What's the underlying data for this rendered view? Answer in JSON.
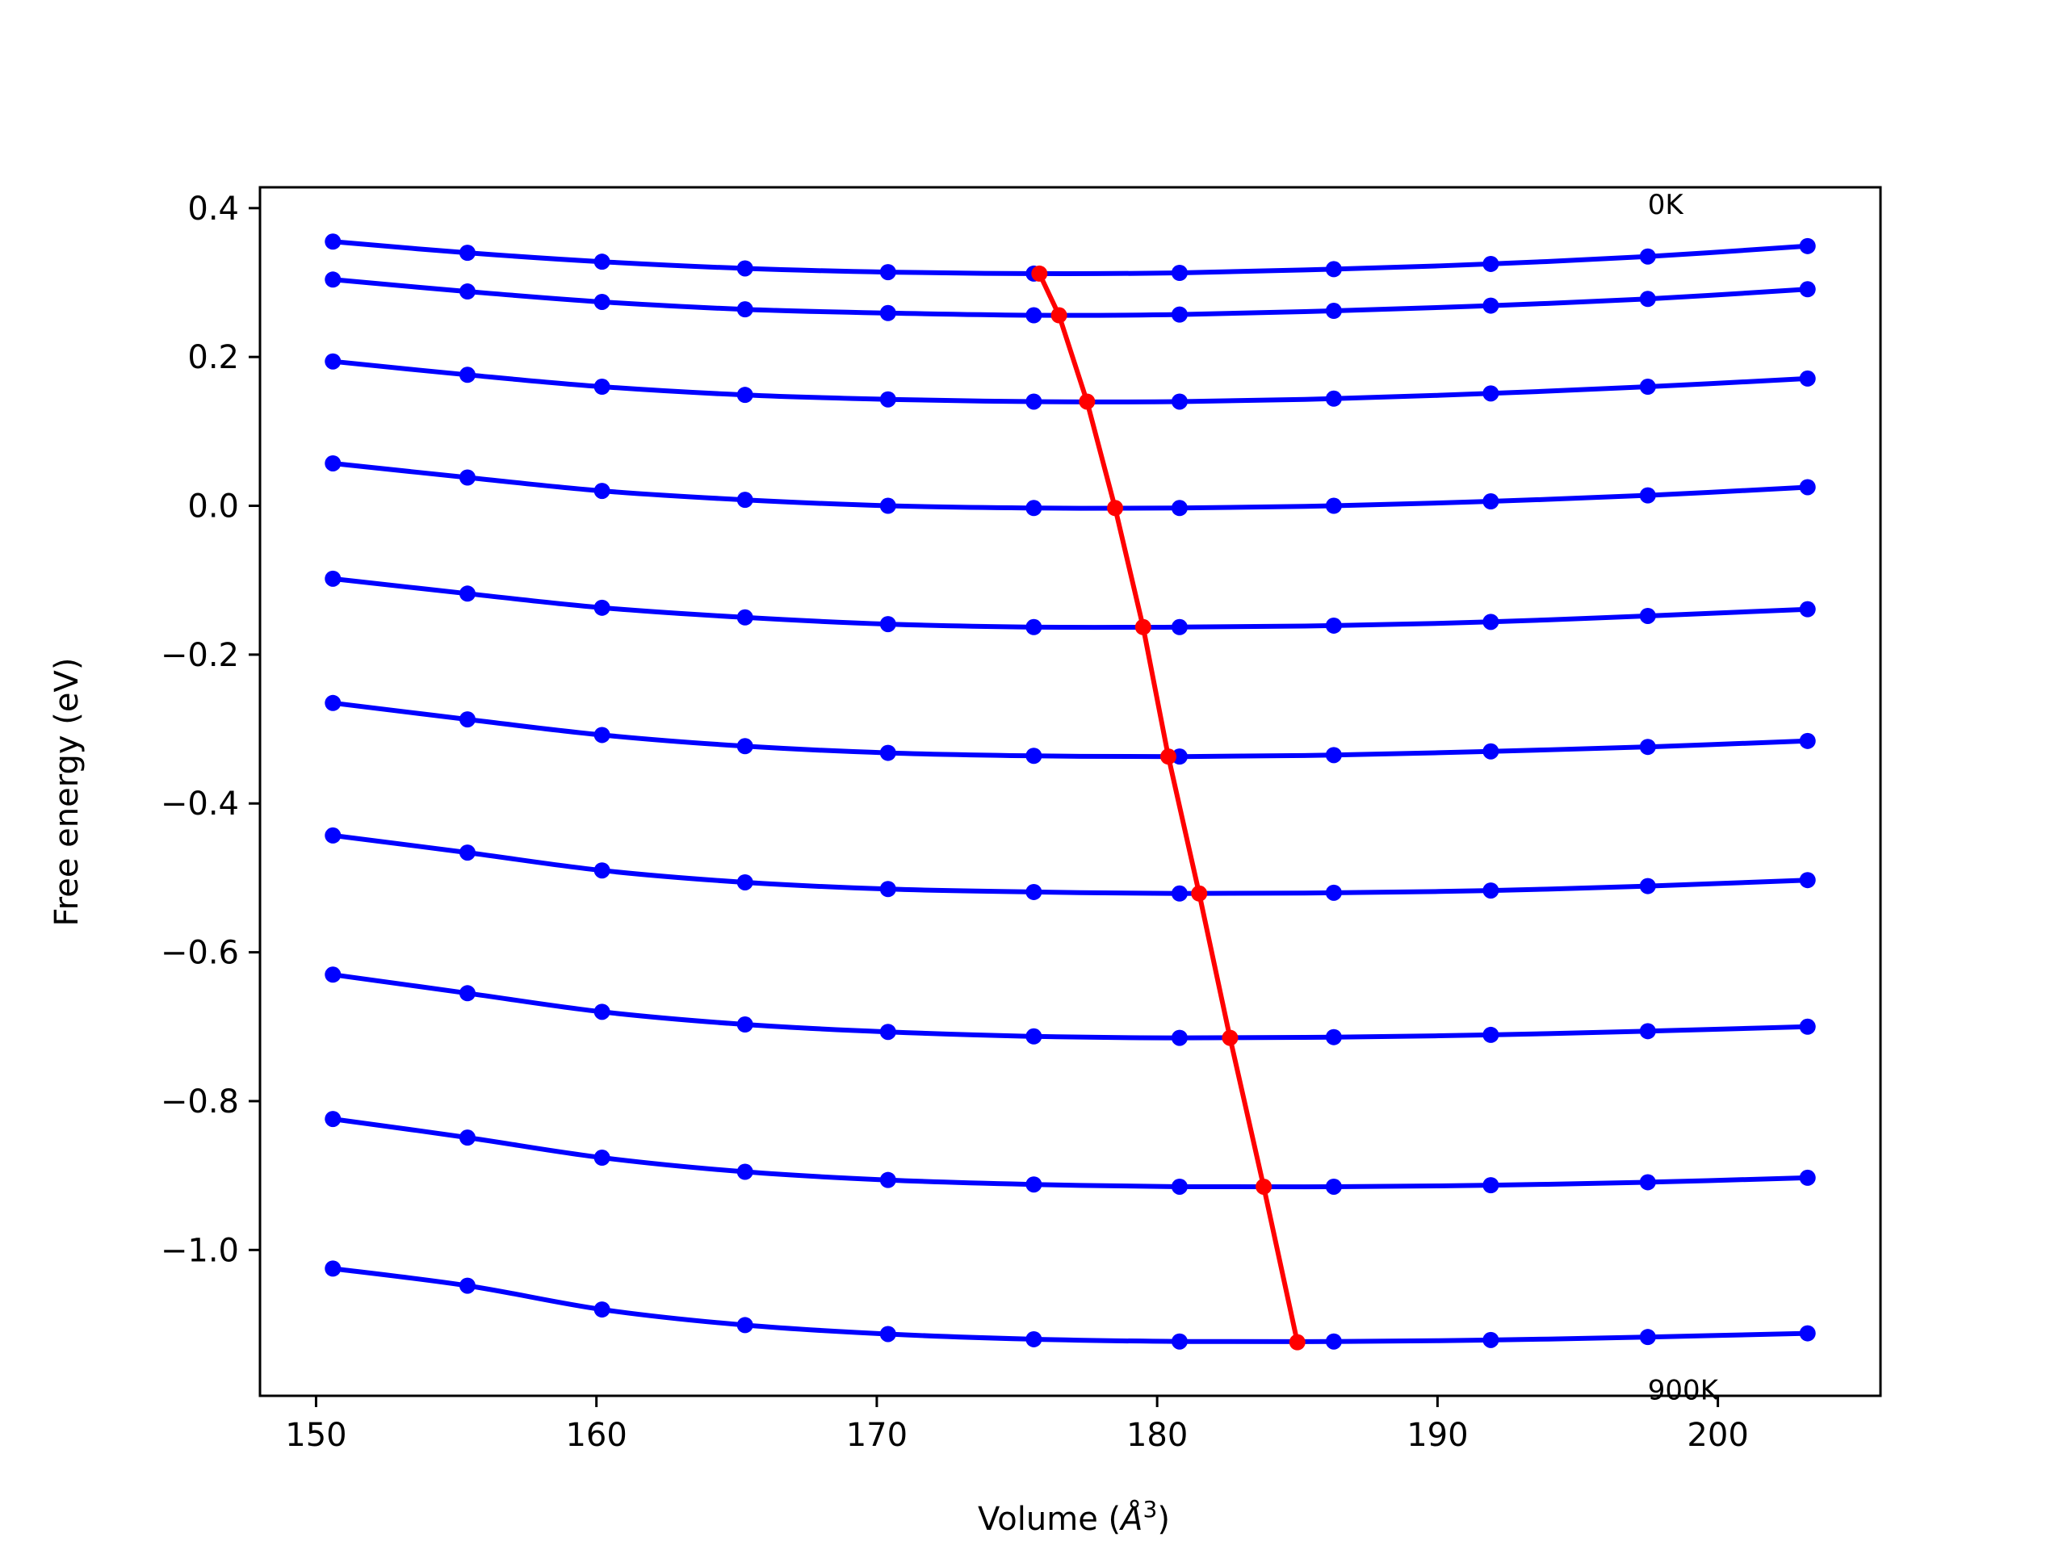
{
  "chart_data": {
    "type": "line",
    "xlabel_main": "Volume (",
    "xlabel_unit": "Å",
    "xlabel_exp": "3",
    "xlabel_close": ")",
    "ylabel": "Free energy (eV)",
    "xlim": [
      148.0,
      205.8
    ],
    "ylim": [
      -1.196,
      0.428
    ],
    "x_ticks": [
      150,
      160,
      170,
      180,
      190,
      200
    ],
    "x_tick_labels": [
      "150",
      "160",
      "170",
      "180",
      "190",
      "200"
    ],
    "y_ticks": [
      0.4,
      0.2,
      0.0,
      -0.2,
      -0.4,
      -0.6,
      -0.8,
      -1.0
    ],
    "y_tick_labels": [
      "0.4",
      "0.2",
      "0.0",
      "−0.2",
      "−0.4",
      "−0.6",
      "−0.8",
      "−1.0"
    ],
    "grid": false,
    "annotations": [
      {
        "text": "0K",
        "x": 197.5,
        "y": 0.405
      },
      {
        "text": "900K",
        "x": 197.5,
        "y": -1.188
      }
    ],
    "colors": {
      "curves": "#0000ff",
      "minima": "#ff0000",
      "axes": "#000000"
    },
    "x": [
      150.6,
      155.4,
      160.2,
      165.3,
      170.4,
      175.6,
      180.8,
      186.3,
      191.9,
      197.5,
      203.2
    ],
    "series": [
      {
        "values": [
          0.355,
          0.34,
          0.328,
          0.319,
          0.314,
          0.312,
          0.313,
          0.318,
          0.325,
          0.335,
          0.349
        ]
      },
      {
        "values": [
          0.304,
          0.288,
          0.274,
          0.264,
          0.259,
          0.256,
          0.257,
          0.262,
          0.269,
          0.278,
          0.291
        ]
      },
      {
        "values": [
          0.194,
          0.176,
          0.16,
          0.149,
          0.143,
          0.14,
          0.14,
          0.144,
          0.151,
          0.16,
          0.171
        ]
      },
      {
        "values": [
          0.057,
          0.038,
          0.02,
          0.008,
          0.0,
          -0.003,
          -0.003,
          0.0,
          0.006,
          0.014,
          0.025
        ]
      },
      {
        "values": [
          -0.098,
          -0.118,
          -0.137,
          -0.15,
          -0.159,
          -0.163,
          -0.163,
          -0.161,
          -0.156,
          -0.148,
          -0.139
        ]
      },
      {
        "values": [
          -0.265,
          -0.287,
          -0.308,
          -0.323,
          -0.332,
          -0.336,
          -0.337,
          -0.335,
          -0.33,
          -0.324,
          -0.316
        ]
      },
      {
        "values": [
          -0.443,
          -0.466,
          -0.49,
          -0.506,
          -0.515,
          -0.519,
          -0.521,
          -0.52,
          -0.517,
          -0.511,
          -0.503
        ]
      },
      {
        "values": [
          -0.63,
          -0.655,
          -0.68,
          -0.697,
          -0.707,
          -0.713,
          -0.715,
          -0.714,
          -0.711,
          -0.706,
          -0.7
        ]
      },
      {
        "values": [
          -0.824,
          -0.849,
          -0.876,
          -0.895,
          -0.906,
          -0.912,
          -0.915,
          -0.915,
          -0.913,
          -0.909,
          -0.903
        ]
      },
      {
        "values": [
          -1.025,
          -1.048,
          -1.08,
          -1.101,
          -1.113,
          -1.12,
          -1.123,
          -1.123,
          -1.121,
          -1.117,
          -1.112
        ]
      }
    ],
    "minima_line": {
      "x": [
        175.8,
        176.5,
        177.5,
        178.5,
        179.5,
        180.4,
        181.5,
        182.6,
        183.8,
        185.0
      ],
      "y": [
        0.312,
        0.256,
        0.14,
        -0.003,
        -0.163,
        -0.337,
        -0.521,
        -0.715,
        -0.915,
        -1.124
      ]
    }
  }
}
